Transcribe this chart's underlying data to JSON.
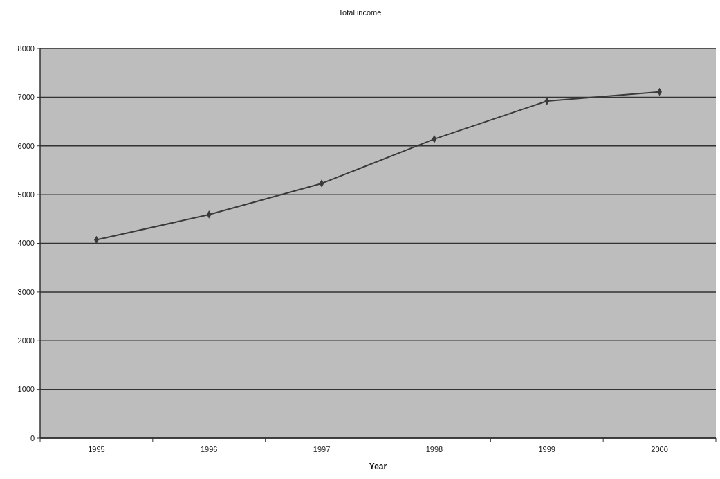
{
  "chart_data": {
    "type": "line",
    "title": "Total income",
    "xlabel": "Year",
    "categories": [
      "1995",
      "1996",
      "1997",
      "1998",
      "1999",
      "2000"
    ],
    "series": [
      {
        "color": "#3a3a3a",
        "values": [
          4070,
          4590,
          5230,
          6140,
          6920,
          7110
        ]
      }
    ],
    "ylim": [
      0,
      8000
    ],
    "yticks": [
      0,
      1000,
      2000,
      3000,
      4000,
      5000,
      6000,
      7000,
      8000
    ],
    "grid": "y",
    "marker": "diamond",
    "line_style": "solid"
  }
}
